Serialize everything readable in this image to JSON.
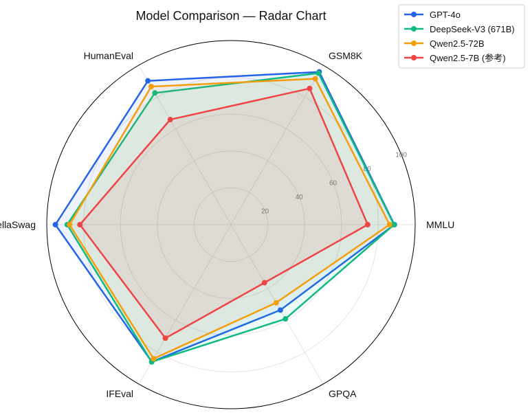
{
  "chart_data": {
    "type": "radar",
    "title": "Model Comparison — Radar Chart",
    "axes": [
      "MMLU",
      "GSM8K",
      "HumanEval",
      "HellaSwag",
      "IFEval",
      "GPQA"
    ],
    "rlim": [
      0,
      100
    ],
    "radial_ticks": [
      20,
      40,
      60,
      80,
      100
    ],
    "grid": true,
    "legend_position": "top-right",
    "series": [
      {
        "name": "GPT-4o",
        "color": "#2563eb",
        "values": [
          88.7,
          95.8,
          90.2,
          95.3,
          86.0,
          53.6
        ]
      },
      {
        "name": "DeepSeek-V3 (671B)",
        "color": "#10b981",
        "values": [
          88.5,
          95.0,
          82.6,
          88.9,
          86.1,
          59.1
        ]
      },
      {
        "name": "Qwen2.5-72B",
        "color": "#f59e0b",
        "values": [
          86.1,
          91.5,
          86.6,
          87.6,
          84.1,
          49.0
        ]
      },
      {
        "name": "Qwen2.5-7B (参考)",
        "color": "#ef4444",
        "values": [
          74.2,
          85.4,
          65.9,
          82.0,
          71.2,
          36.4
        ]
      }
    ]
  }
}
